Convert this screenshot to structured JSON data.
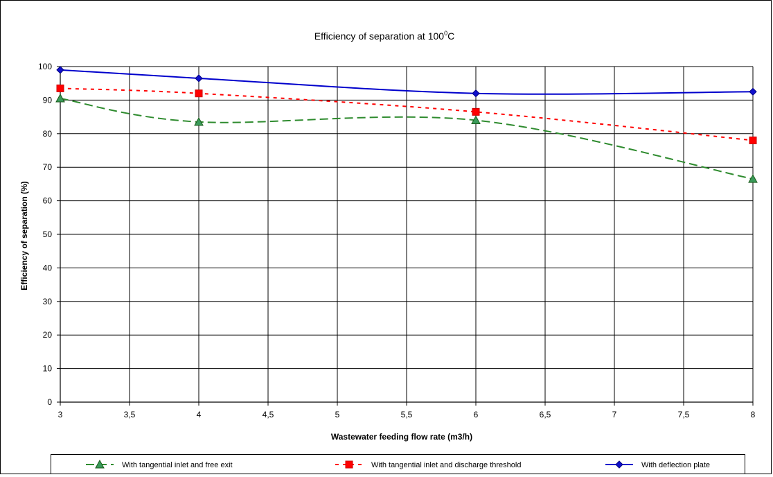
{
  "chart_data": {
    "type": "line",
    "title": "Efficiency of separation at 100",
    "title_super": "0",
    "title_unit": "C",
    "xlabel": "Wastewater feeding flow rate (m3/h)",
    "ylabel": "Efficiency of separation (%)",
    "xlim": [
      3,
      8
    ],
    "ylim": [
      0,
      100
    ],
    "x_ticks": [
      "3",
      "3,5",
      "4",
      "4,5",
      "5",
      "5,5",
      "6",
      "6,5",
      "7",
      "7,5",
      "8"
    ],
    "y_ticks": [
      "0",
      "10",
      "20",
      "30",
      "40",
      "50",
      "60",
      "70",
      "80",
      "90",
      "100"
    ],
    "grid": true,
    "legend_position": "bottom",
    "x": [
      3,
      4,
      6,
      8
    ],
    "series": [
      {
        "name": "With tangential inlet and free exit",
        "values": [
          90.5,
          83.5,
          84,
          66.5
        ],
        "color": "#2e8b2e",
        "marker": "triangle",
        "line_style": "long-dash"
      },
      {
        "name": "With tangential inlet and discharge threshold",
        "values": [
          93.5,
          92,
          86.5,
          78
        ],
        "color": "#ff0000",
        "marker": "square",
        "line_style": "dotted"
      },
      {
        "name": "With deflection plate",
        "values": [
          99,
          96.5,
          92,
          92.5
        ],
        "color": "#0000cc",
        "marker": "diamond",
        "line_style": "solid"
      }
    ]
  }
}
